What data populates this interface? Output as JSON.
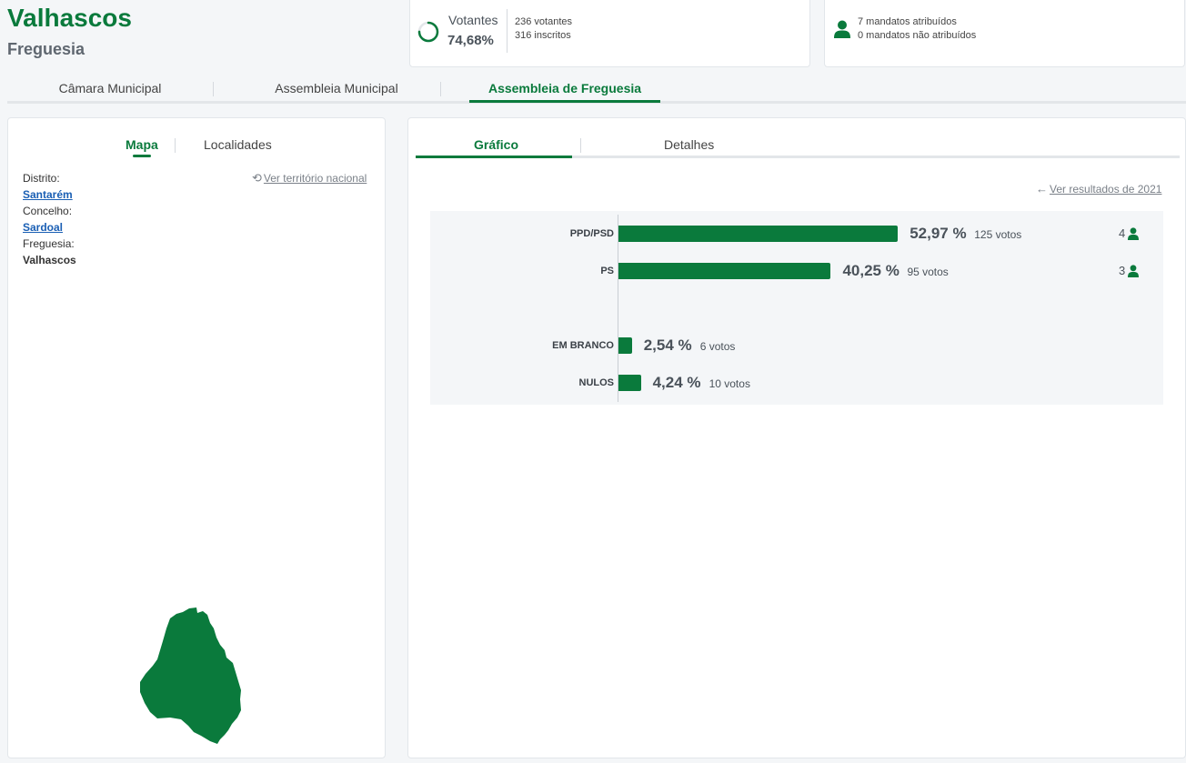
{
  "header": {
    "title": "Valhascos",
    "subtitle": "Freguesia"
  },
  "turnout": {
    "label": "Votantes",
    "percent": "74,68%",
    "percent_value": 0.7468,
    "voters": "236 votantes",
    "registered": "316 inscritos"
  },
  "mandates": {
    "assigned": "7 mandatos atribuídos",
    "unassigned": "0 mandatos não atribuídos"
  },
  "main_tabs": [
    {
      "label": "Câmara Municipal"
    },
    {
      "label": "Assembleia Municipal"
    },
    {
      "label": "Assembleia de Freguesia",
      "active": true
    }
  ],
  "left_panel": {
    "tabs": [
      {
        "label": "Mapa",
        "active": true
      },
      {
        "label": "Localidades"
      }
    ],
    "national_link": "Ver território nacional",
    "district_label": "Distrito:",
    "district": "Santarém",
    "county_label": "Concelho:",
    "county": "Sardoal",
    "parish_label": "Freguesia:",
    "parish": "Valhascos"
  },
  "right_panel": {
    "tabs": [
      {
        "label": "Gráfico",
        "active": true
      },
      {
        "label": "Detalhes"
      }
    ],
    "previous_link": "Ver resultados de 2021"
  },
  "chart_data": {
    "type": "bar",
    "orientation": "horizontal",
    "categories": [
      "PPD/PSD",
      "PS",
      "EM BRANCO",
      "NULOS"
    ],
    "series": [
      {
        "values": [
          52.97,
          40.25,
          2.54,
          4.24
        ]
      }
    ],
    "percent_labels": [
      "52,97 %",
      "40,25 %",
      "2,54 %",
      "4,24 %"
    ],
    "vote_labels": [
      "125 votos",
      "95 votos",
      "6 votos",
      "10 votos"
    ],
    "seats": [
      "4",
      "3"
    ],
    "xlim": [
      0,
      100
    ]
  },
  "colors": {
    "accent": "#0a7a3c",
    "link": "#1a5fb4"
  }
}
